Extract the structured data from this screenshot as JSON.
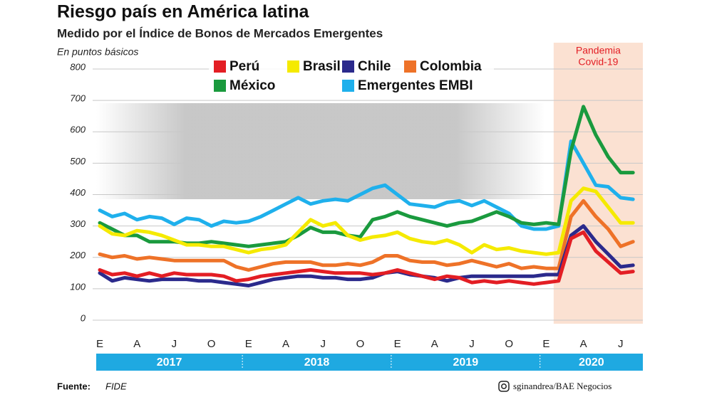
{
  "chart_data": {
    "type": "line",
    "title": "Riesgo país en América latina",
    "subtitle": "Medido por el Índice de Bonos de Mercados Emergentes",
    "y_label": "En puntos básicos",
    "annotation": [
      "Pandemia",
      "Covid-19"
    ],
    "source_label": "Fuente:",
    "source": "FIDE",
    "credit": "sginandrea/BAE Negocios",
    "categories": [
      "E",
      null,
      null,
      "A",
      null,
      null,
      "J",
      null,
      null,
      "O",
      null,
      null,
      "E",
      null,
      null,
      "A",
      null,
      null,
      "J",
      null,
      null,
      "O",
      null,
      null,
      "E",
      null,
      null,
      "A",
      null,
      null,
      "J",
      null,
      null,
      "O",
      null,
      null,
      "E",
      null,
      null,
      "A",
      null,
      null,
      "J",
      null
    ],
    "year_labels": [
      "2017",
      "2018",
      "2019",
      "2020"
    ],
    "ylim": [
      0,
      800
    ],
    "yticks": [
      0,
      100,
      200,
      300,
      400,
      500,
      600,
      700,
      800
    ],
    "grid": true,
    "series": [
      {
        "name": "Perú",
        "color": "#e31e24",
        "values": [
          160,
          145,
          150,
          140,
          150,
          140,
          150,
          145,
          145,
          145,
          140,
          125,
          130,
          140,
          145,
          150,
          155,
          160,
          155,
          150,
          150,
          150,
          145,
          150,
          160,
          150,
          140,
          130,
          140,
          135,
          120,
          125,
          120,
          125,
          120,
          115,
          120,
          125,
          260,
          280,
          220,
          185,
          150,
          155
        ]
      },
      {
        "name": "Brasil",
        "color": "#f5ea00",
        "values": [
          300,
          275,
          270,
          285,
          280,
          270,
          255,
          240,
          240,
          235,
          235,
          225,
          215,
          225,
          230,
          240,
          280,
          320,
          300,
          310,
          270,
          255,
          265,
          270,
          280,
          260,
          250,
          245,
          255,
          240,
          215,
          240,
          225,
          230,
          220,
          215,
          210,
          215,
          380,
          420,
          410,
          360,
          310,
          310
        ]
      },
      {
        "name": "Chile",
        "color": "#2b2a8c",
        "values": [
          150,
          125,
          135,
          130,
          125,
          130,
          130,
          130,
          125,
          125,
          120,
          115,
          110,
          120,
          130,
          135,
          140,
          140,
          135,
          135,
          130,
          130,
          135,
          150,
          155,
          145,
          140,
          135,
          125,
          135,
          140,
          140,
          140,
          140,
          140,
          140,
          145,
          145,
          270,
          300,
          250,
          210,
          170,
          175
        ]
      },
      {
        "name": "Colombia",
        "color": "#ee7228",
        "values": [
          210,
          200,
          205,
          195,
          200,
          195,
          190,
          190,
          190,
          190,
          190,
          170,
          160,
          170,
          180,
          185,
          185,
          185,
          175,
          175,
          180,
          175,
          185,
          205,
          205,
          190,
          185,
          185,
          175,
          180,
          190,
          180,
          170,
          180,
          165,
          170,
          165,
          165,
          330,
          380,
          330,
          290,
          235,
          250
        ]
      },
      {
        "name": "México",
        "color": "#1a9a3e",
        "values": [
          310,
          290,
          270,
          270,
          250,
          250,
          250,
          245,
          245,
          250,
          245,
          240,
          235,
          240,
          245,
          250,
          270,
          295,
          280,
          280,
          270,
          265,
          320,
          330,
          345,
          330,
          320,
          310,
          300,
          310,
          315,
          330,
          345,
          330,
          310,
          305,
          310,
          305,
          540,
          680,
          590,
          520,
          470,
          470
        ]
      },
      {
        "name": "Emergentes EMBI",
        "color": "#1fb0ec",
        "values": [
          350,
          330,
          340,
          320,
          330,
          325,
          305,
          325,
          320,
          300,
          315,
          310,
          315,
          330,
          350,
          370,
          390,
          370,
          380,
          385,
          380,
          400,
          420,
          430,
          400,
          370,
          365,
          360,
          375,
          380,
          365,
          380,
          360,
          340,
          300,
          290,
          290,
          300,
          570,
          500,
          430,
          425,
          390,
          385
        ]
      }
    ]
  }
}
